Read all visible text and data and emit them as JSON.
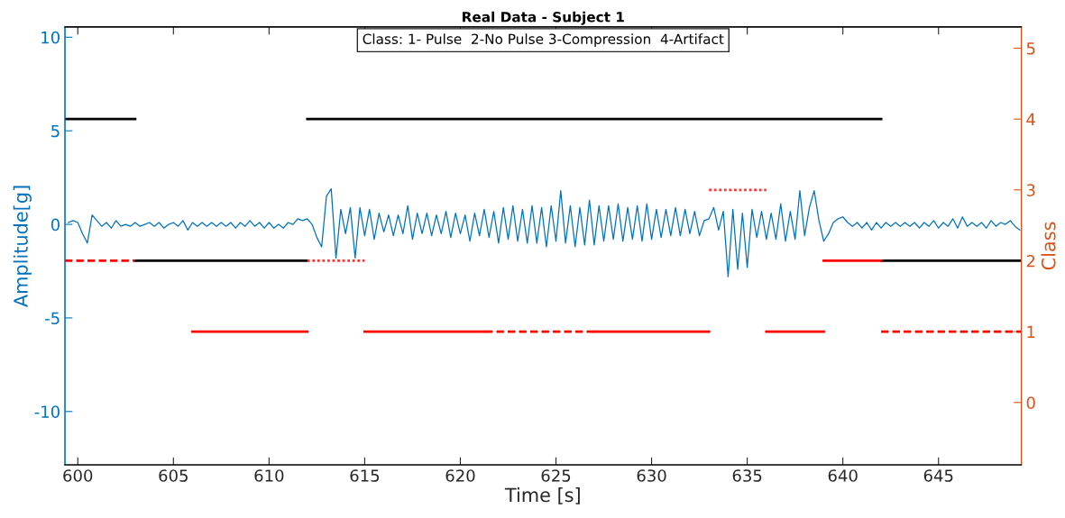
{
  "chart_data": {
    "type": "line",
    "title": "Real Data - Subject 1",
    "xlabel": "Time [s]",
    "ylabel": "Amplitude[g]",
    "y2label": "Class",
    "annotations": [
      "Class: 1- Pulse  2-No Pulse 3-Compression  4-Artifact"
    ],
    "xlim": [
      599.33,
      649.33
    ],
    "xticks": [
      600,
      605,
      610,
      615,
      620,
      625,
      630,
      635,
      640,
      645
    ],
    "ylim": [
      -12.85,
      10.55
    ],
    "yticks": [
      -10,
      -5,
      0,
      5,
      10
    ],
    "y2lim": [
      -0.88,
      5.3
    ],
    "y2ticks": [
      0,
      1,
      2,
      3,
      4,
      5
    ],
    "grid": false,
    "marker": "none",
    "series": [
      {
        "color": "#0072bd",
        "line_style": "solid",
        "x": [
          599.5,
          599.75,
          600,
          600.25,
          600.5,
          600.75,
          601,
          601.25,
          601.5,
          601.75,
          602,
          602.25,
          602.5,
          602.75,
          603,
          603.25,
          603.5,
          603.75,
          604,
          604.25,
          604.5,
          604.75,
          605,
          605.25,
          605.5,
          605.75,
          606,
          606.25,
          606.5,
          606.75,
          607,
          607.25,
          607.5,
          607.75,
          608,
          608.25,
          608.5,
          608.75,
          609,
          609.25,
          609.5,
          609.75,
          610,
          610.25,
          610.5,
          610.75,
          611,
          611.25,
          611.5,
          611.75,
          612,
          612.25,
          612.5,
          612.75,
          613,
          613.25,
          613.5,
          613.75,
          614,
          614.25,
          614.5,
          614.75,
          615,
          615.25,
          615.5,
          615.75,
          616,
          616.25,
          616.5,
          616.75,
          617,
          617.25,
          617.5,
          617.75,
          618,
          618.25,
          618.5,
          618.75,
          619,
          619.25,
          619.5,
          619.75,
          620,
          620.25,
          620.5,
          620.75,
          621,
          621.25,
          621.5,
          621.75,
          622,
          622.25,
          622.5,
          622.75,
          623,
          623.25,
          623.5,
          623.75,
          624,
          624.25,
          624.5,
          624.75,
          625,
          625.25,
          625.5,
          625.75,
          626,
          626.25,
          626.5,
          626.75,
          627,
          627.25,
          627.5,
          627.75,
          628,
          628.25,
          628.5,
          628.75,
          629,
          629.25,
          629.5,
          629.75,
          630,
          630.25,
          630.5,
          630.75,
          631,
          631.25,
          631.5,
          631.75,
          632,
          632.25,
          632.5,
          632.75,
          633,
          633.25,
          633.5,
          633.75,
          634,
          634.25,
          634.5,
          634.75,
          635,
          635.25,
          635.5,
          635.75,
          636,
          636.25,
          636.5,
          636.75,
          637,
          637.25,
          637.5,
          637.75,
          638,
          638.25,
          638.5,
          638.75,
          639,
          639.25,
          639.5,
          639.75,
          640,
          640.25,
          640.5,
          640.75,
          641,
          641.25,
          641.5,
          641.75,
          642,
          642.25,
          642.5,
          642.75,
          643,
          643.25,
          643.5,
          643.75,
          644,
          644.25,
          644.5,
          644.75,
          645,
          645.25,
          645.5,
          645.75,
          646,
          646.25,
          646.5,
          646.75,
          647,
          647.25,
          647.5,
          647.75,
          648,
          648.25,
          648.5,
          648.75,
          649,
          649.25
        ],
        "values": [
          0.1,
          0.2,
          0.1,
          -0.5,
          -1.0,
          0.5,
          0.2,
          -0.1,
          0.1,
          -0.2,
          0.2,
          -0.1,
          0.0,
          -0.1,
          0.1,
          -0.1,
          0.0,
          0.1,
          -0.1,
          0.1,
          -0.2,
          0.0,
          0.1,
          -0.1,
          0.2,
          -0.3,
          0.1,
          -0.1,
          0.1,
          -0.1,
          0.1,
          -0.1,
          0.1,
          -0.1,
          0.1,
          -0.2,
          0.1,
          -0.1,
          0.2,
          -0.1,
          0.1,
          -0.2,
          0.1,
          -0.2,
          0.0,
          -0.2,
          0.1,
          0.0,
          0.3,
          0.2,
          0.3,
          0.0,
          -0.7,
          -1.2,
          1.5,
          1.9,
          -1.8,
          0.8,
          -0.5,
          0.9,
          -1.8,
          0.9,
          -0.6,
          0.8,
          -0.8,
          0.6,
          -0.4,
          0.5,
          -0.6,
          0.5,
          -0.5,
          1.0,
          -0.8,
          0.6,
          -0.5,
          0.6,
          -0.6,
          0.5,
          -0.5,
          0.7,
          -0.7,
          0.6,
          -0.5,
          0.5,
          -0.9,
          0.6,
          -0.6,
          0.8,
          -0.7,
          0.7,
          -1.0,
          0.9,
          -0.8,
          1.0,
          -0.9,
          0.8,
          -1.0,
          1.0,
          -1.0,
          0.9,
          -1.2,
          1.0,
          -0.9,
          1.8,
          -1.0,
          1.0,
          -1.2,
          0.9,
          -1.1,
          1.3,
          -1.1,
          1.0,
          -0.9,
          1.0,
          -0.8,
          1.1,
          -0.9,
          0.9,
          -0.8,
          1.0,
          -0.9,
          1.1,
          -0.8,
          0.8,
          -0.7,
          0.8,
          -0.6,
          0.9,
          -0.6,
          0.8,
          -0.5,
          0.7,
          -0.6,
          0.2,
          0.3,
          0.9,
          -0.3,
          0.7,
          -2.8,
          0.8,
          -2.4,
          0.6,
          -2.3,
          0.8,
          -0.7,
          0.7,
          -0.8,
          0.6,
          -0.8,
          1.1,
          -0.9,
          0.7,
          -0.8,
          1.8,
          -0.6,
          0.9,
          1.8,
          0.2,
          -0.9,
          -0.5,
          0.1,
          0.3,
          0.4,
          0.1,
          -0.1,
          0.1,
          -0.2,
          0.1,
          -0.3,
          0.1,
          -0.2,
          0.1,
          -0.1,
          0.1,
          -0.1,
          0.1,
          -0.1,
          0.1,
          -0.2,
          0.1,
          -0.1,
          0.2,
          -0.2,
          0.1,
          -0.1,
          0.3,
          -0.2,
          0.4,
          -0.1,
          0.1,
          -0.1,
          0.1,
          -0.2,
          0.2,
          -0.1,
          0.1,
          0.0,
          0.2,
          -0.1,
          -0.3
        ]
      },
      {
        "color": "#000000",
        "axis": "y2",
        "line_style": "solid",
        "x": [
          599.33,
          603
        ],
        "values": [
          4,
          4
        ]
      },
      {
        "color": "#000000",
        "axis": "y2",
        "line_style": "solid",
        "x": [
          603,
          612
        ],
        "values": [
          2,
          2
        ]
      },
      {
        "color": "#000000",
        "axis": "y2",
        "line_style": "solid",
        "x": [
          612,
          642
        ],
        "values": [
          4,
          4
        ]
      },
      {
        "color": "#000000",
        "axis": "y2",
        "line_style": "solid",
        "x": [
          642,
          649.33
        ],
        "values": [
          2,
          2
        ]
      },
      {
        "color": "#ff0000",
        "axis": "y2",
        "line_style": "solid",
        "x": [
          606,
          612
        ],
        "values": [
          1,
          1
        ]
      },
      {
        "color": "#ff0000",
        "axis": "y2",
        "line_style": "solid",
        "x": [
          615,
          621.3
        ],
        "values": [
          1,
          1
        ]
      },
      {
        "color": "#ff0000",
        "axis": "y2",
        "line_style": "solid",
        "x": [
          627,
          633
        ],
        "values": [
          1,
          1
        ]
      },
      {
        "color": "#ff0000",
        "axis": "y2",
        "line_style": "solid",
        "x": [
          636,
          639
        ],
        "values": [
          1,
          1
        ]
      },
      {
        "color": "#ff0000",
        "axis": "y2",
        "line_style": "solid",
        "x": [
          639,
          642
        ],
        "values": [
          2,
          2
        ]
      },
      {
        "color": "#ff0000",
        "axis": "y2",
        "line_style": "dashed",
        "x": [
          599.33,
          603
        ],
        "values": [
          2,
          2
        ]
      },
      {
        "color": "#ff0000",
        "axis": "y2",
        "line_style": "dashed",
        "x": [
          621.3,
          627
        ],
        "values": [
          1,
          1
        ]
      },
      {
        "color": "#ff0000",
        "axis": "y2",
        "line_style": "dashed",
        "x": [
          642,
          649.33
        ],
        "values": [
          1,
          1
        ]
      },
      {
        "color": "#ff3333",
        "axis": "y2",
        "line_style": "dotted",
        "x": [
          612,
          615
        ],
        "values": [
          2,
          2
        ]
      },
      {
        "color": "#ff3333",
        "axis": "y2",
        "line_style": "dotted",
        "x": [
          633,
          636
        ],
        "values": [
          3,
          3
        ]
      }
    ]
  }
}
